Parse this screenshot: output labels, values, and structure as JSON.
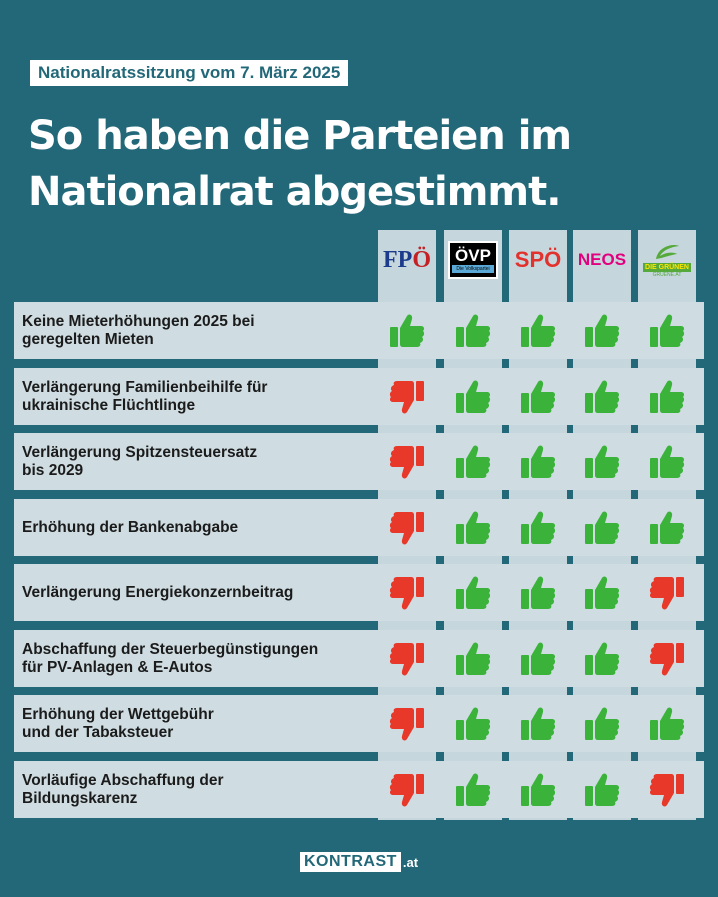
{
  "date_label": "Nationalratssitzung vom 7. März 2025",
  "headline_line1": "So haben die Parteien im",
  "headline_line2": "Nationalrat abgestimmt.",
  "parties": [
    {
      "name": "FPÖ",
      "logo_main": "FP",
      "logo_accent": "Ö"
    },
    {
      "name": "ÖVP",
      "logo_main": "ÖVP",
      "logo_sub": "Die Volkspartei"
    },
    {
      "name": "SPÖ",
      "logo_main": "SPÖ"
    },
    {
      "name": "NEOS",
      "logo_main": "NEOS"
    },
    {
      "name": "Die Grünen",
      "logo_main": "DIE GRÜNEN",
      "logo_sub": "GRUENE.AT"
    }
  ],
  "rows": [
    {
      "line1": "Keine Mieterhöhungen 2025 bei",
      "line2": "geregelten Mieten",
      "votes": [
        "up",
        "up",
        "up",
        "up",
        "up"
      ]
    },
    {
      "line1": "Verlängerung Familienbeihilfe für",
      "line2": "ukrainische Flüchtlinge",
      "votes": [
        "down",
        "up",
        "up",
        "up",
        "up"
      ]
    },
    {
      "line1": "Verlängerung Spitzensteuersatz",
      "line2": "bis 2029",
      "votes": [
        "down",
        "up",
        "up",
        "up",
        "up"
      ]
    },
    {
      "line1": "Erhöhung der Bankenabgabe",
      "line2": "",
      "votes": [
        "down",
        "up",
        "up",
        "up",
        "up"
      ]
    },
    {
      "line1": "Verlängerung Energiekonzernbeitrag",
      "line2": "",
      "votes": [
        "down",
        "up",
        "up",
        "up",
        "down"
      ]
    },
    {
      "line1": "Abschaffung der Steuerbegünstigungen",
      "line2": "für PV-Anlagen & E-Autos",
      "votes": [
        "down",
        "up",
        "up",
        "up",
        "down"
      ]
    },
    {
      "line1": "Erhöhung der Wettgebühr",
      "line2": "und der Tabaksteuer",
      "votes": [
        "down",
        "up",
        "up",
        "up",
        "up"
      ]
    },
    {
      "line1": "Vorläufige Abschaffung der",
      "line2": "Bildungskarenz",
      "votes": [
        "down",
        "up",
        "up",
        "up",
        "down"
      ]
    }
  ],
  "footer": {
    "brand": "KONTRAST",
    "tld": ".at"
  },
  "colors": {
    "background": "#226878",
    "row": "#cfdde2",
    "up": "#3bb33b",
    "down": "#e8382a"
  }
}
